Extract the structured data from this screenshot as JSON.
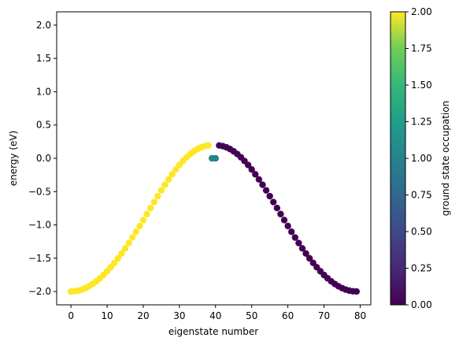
{
  "chart_data": {
    "type": "scatter",
    "xlabel": "eigenstate number",
    "ylabel": "energy (eV)",
    "xlim": [
      -3.95,
      82.95
    ],
    "ylim": [
      -2.2,
      2.2
    ],
    "xticks": [
      0,
      10,
      20,
      30,
      40,
      50,
      60,
      70,
      80
    ],
    "xtick_labels": [
      "0",
      "10",
      "20",
      "30",
      "40",
      "50",
      "60",
      "70",
      "80"
    ],
    "yticks": [
      -2.0,
      -1.5,
      -1.0,
      -0.5,
      0.0,
      0.5,
      1.0,
      1.5,
      2.0
    ],
    "ytick_labels": [
      "−2.0",
      "−1.5",
      "−1.0",
      "−0.5",
      "0.0",
      "0.5",
      "1.0",
      "1.5",
      "2.0"
    ],
    "grid": false,
    "colorbar": {
      "label": "ground state occupation",
      "range": [
        0,
        2
      ],
      "colormap": "viridis",
      "ticks": [
        0.0,
        0.25,
        0.5,
        0.75,
        1.0,
        1.25,
        1.5,
        1.75,
        2.0
      ],
      "tick_labels": [
        "0.00",
        "0.25",
        "0.50",
        "0.75",
        "1.00",
        "1.25",
        "1.50",
        "1.75",
        "2.00"
      ]
    },
    "points": [
      {
        "x": 0,
        "y": -2.0,
        "c": 2
      },
      {
        "x": 1,
        "y": -1.997,
        "c": 2
      },
      {
        "x": 2,
        "y": -1.987,
        "c": 2
      },
      {
        "x": 3,
        "y": -1.971,
        "c": 2
      },
      {
        "x": 4,
        "y": -1.949,
        "c": 2
      },
      {
        "x": 5,
        "y": -1.921,
        "c": 2
      },
      {
        "x": 6,
        "y": -1.887,
        "c": 2
      },
      {
        "x": 7,
        "y": -1.847,
        "c": 2
      },
      {
        "x": 8,
        "y": -1.802,
        "c": 2
      },
      {
        "x": 9,
        "y": -1.752,
        "c": 2
      },
      {
        "x": 10,
        "y": -1.696,
        "c": 2
      },
      {
        "x": 11,
        "y": -1.636,
        "c": 2
      },
      {
        "x": 12,
        "y": -1.571,
        "c": 2
      },
      {
        "x": 13,
        "y": -1.502,
        "c": 2
      },
      {
        "x": 14,
        "y": -1.429,
        "c": 2
      },
      {
        "x": 15,
        "y": -1.352,
        "c": 2
      },
      {
        "x": 16,
        "y": -1.272,
        "c": 2
      },
      {
        "x": 17,
        "y": -1.189,
        "c": 2
      },
      {
        "x": 18,
        "y": -1.103,
        "c": 2
      },
      {
        "x": 19,
        "y": -1.016,
        "c": 2
      },
      {
        "x": 20,
        "y": -0.927,
        "c": 2
      },
      {
        "x": 21,
        "y": -0.837,
        "c": 2
      },
      {
        "x": 22,
        "y": -0.746,
        "c": 2
      },
      {
        "x": 23,
        "y": -0.657,
        "c": 2
      },
      {
        "x": 24,
        "y": -0.568,
        "c": 2
      },
      {
        "x": 25,
        "y": -0.481,
        "c": 2
      },
      {
        "x": 26,
        "y": -0.397,
        "c": 2
      },
      {
        "x": 27,
        "y": -0.317,
        "c": 2
      },
      {
        "x": 28,
        "y": -0.24,
        "c": 2
      },
      {
        "x": 29,
        "y": -0.168,
        "c": 2
      },
      {
        "x": 30,
        "y": -0.1,
        "c": 2
      },
      {
        "x": 31,
        "y": -0.039,
        "c": 2
      },
      {
        "x": 32,
        "y": 0.016,
        "c": 2
      },
      {
        "x": 33,
        "y": 0.064,
        "c": 2
      },
      {
        "x": 34,
        "y": 0.105,
        "c": 2
      },
      {
        "x": 35,
        "y": 0.139,
        "c": 2
      },
      {
        "x": 36,
        "y": 0.165,
        "c": 2
      },
      {
        "x": 37,
        "y": 0.183,
        "c": 2
      },
      {
        "x": 38,
        "y": 0.193,
        "c": 2
      },
      {
        "x": 39,
        "y": 0.0,
        "c": 1
      },
      {
        "x": 40,
        "y": 0.0,
        "c": 1
      },
      {
        "x": 41,
        "y": 0.193,
        "c": 0
      },
      {
        "x": 42,
        "y": 0.183,
        "c": 0
      },
      {
        "x": 43,
        "y": 0.165,
        "c": 0
      },
      {
        "x": 44,
        "y": 0.139,
        "c": 0
      },
      {
        "x": 45,
        "y": 0.105,
        "c": 0
      },
      {
        "x": 46,
        "y": 0.064,
        "c": 0
      },
      {
        "x": 47,
        "y": 0.016,
        "c": 0
      },
      {
        "x": 48,
        "y": -0.039,
        "c": 0
      },
      {
        "x": 49,
        "y": -0.1,
        "c": 0
      },
      {
        "x": 50,
        "y": -0.168,
        "c": 0
      },
      {
        "x": 51,
        "y": -0.24,
        "c": 0
      },
      {
        "x": 52,
        "y": -0.317,
        "c": 0
      },
      {
        "x": 53,
        "y": -0.397,
        "c": 0
      },
      {
        "x": 54,
        "y": -0.481,
        "c": 0
      },
      {
        "x": 55,
        "y": -0.568,
        "c": 0
      },
      {
        "x": 56,
        "y": -0.657,
        "c": 0
      },
      {
        "x": 57,
        "y": -0.746,
        "c": 0
      },
      {
        "x": 58,
        "y": -0.837,
        "c": 0
      },
      {
        "x": 59,
        "y": -0.927,
        "c": 0
      },
      {
        "x": 60,
        "y": -1.016,
        "c": 0
      },
      {
        "x": 61,
        "y": -1.103,
        "c": 0
      },
      {
        "x": 62,
        "y": -1.189,
        "c": 0
      },
      {
        "x": 63,
        "y": -1.272,
        "c": 0
      },
      {
        "x": 64,
        "y": -1.352,
        "c": 0
      },
      {
        "x": 65,
        "y": -1.429,
        "c": 0
      },
      {
        "x": 66,
        "y": -1.502,
        "c": 0
      },
      {
        "x": 67,
        "y": -1.571,
        "c": 0
      },
      {
        "x": 68,
        "y": -1.636,
        "c": 0
      },
      {
        "x": 69,
        "y": -1.696,
        "c": 0
      },
      {
        "x": 70,
        "y": -1.752,
        "c": 0
      },
      {
        "x": 71,
        "y": -1.802,
        "c": 0
      },
      {
        "x": 72,
        "y": -1.847,
        "c": 0
      },
      {
        "x": 73,
        "y": -1.887,
        "c": 0
      },
      {
        "x": 74,
        "y": -1.921,
        "c": 0
      },
      {
        "x": 75,
        "y": -1.949,
        "c": 0
      },
      {
        "x": 76,
        "y": -1.971,
        "c": 0
      },
      {
        "x": 77,
        "y": -1.987,
        "c": 0
      },
      {
        "x": 78,
        "y": -1.997,
        "c": 0
      },
      {
        "x": 79,
        "y": -2.0,
        "c": 0
      }
    ]
  }
}
